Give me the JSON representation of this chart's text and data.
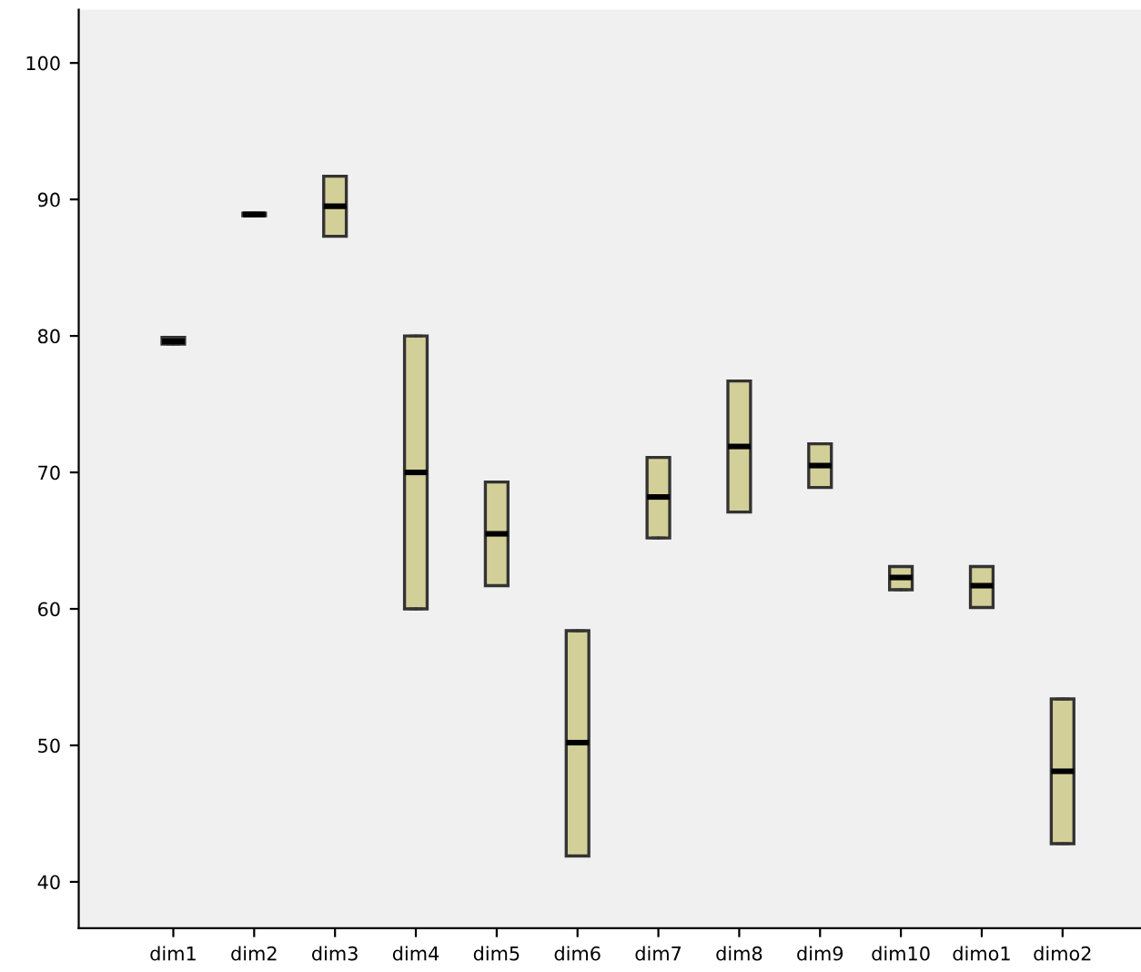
{
  "chart_data": {
    "type": "box",
    "categories": [
      "dim1",
      "dim2",
      "dim3",
      "dim4",
      "dim5",
      "dim6",
      "dim7",
      "dim8",
      "dim9",
      "dim10",
      "dimo1",
      "dimo2"
    ],
    "boxes": [
      {
        "low": 79.4,
        "q1": 79.4,
        "median": 79.6,
        "q3": 79.9,
        "high": 79.9
      },
      {
        "low": 88.8,
        "q1": 88.8,
        "median": 88.9,
        "q3": 89.0,
        "high": 89.0
      },
      {
        "low": 87.3,
        "q1": 87.3,
        "median": 89.5,
        "q3": 91.7,
        "high": 91.7
      },
      {
        "low": 60.0,
        "q1": 60.0,
        "median": 70.0,
        "q3": 80.0,
        "high": 80.0
      },
      {
        "low": 61.7,
        "q1": 61.7,
        "median": 65.5,
        "q3": 69.3,
        "high": 69.3
      },
      {
        "low": 41.9,
        "q1": 41.9,
        "median": 50.2,
        "q3": 58.4,
        "high": 58.4
      },
      {
        "low": 65.2,
        "q1": 65.2,
        "median": 68.2,
        "q3": 71.1,
        "high": 71.1
      },
      {
        "low": 67.1,
        "q1": 67.1,
        "median": 71.9,
        "q3": 76.7,
        "high": 76.7
      },
      {
        "low": 68.9,
        "q1": 68.9,
        "median": 70.5,
        "q3": 72.1,
        "high": 72.1
      },
      {
        "low": 61.4,
        "q1": 61.4,
        "median": 62.3,
        "q3": 63.1,
        "high": 63.1
      },
      {
        "low": 60.1,
        "q1": 60.1,
        "median": 61.7,
        "q3": 63.1,
        "high": 63.1
      },
      {
        "low": 42.8,
        "q1": 42.8,
        "median": 48.1,
        "q3": 53.4,
        "high": 53.4
      }
    ],
    "color": "#d3cf98",
    "ylim": [
      36.6,
      103.9
    ],
    "yticks": [
      40,
      50,
      60,
      70,
      80,
      90,
      100
    ],
    "grid": false
  }
}
